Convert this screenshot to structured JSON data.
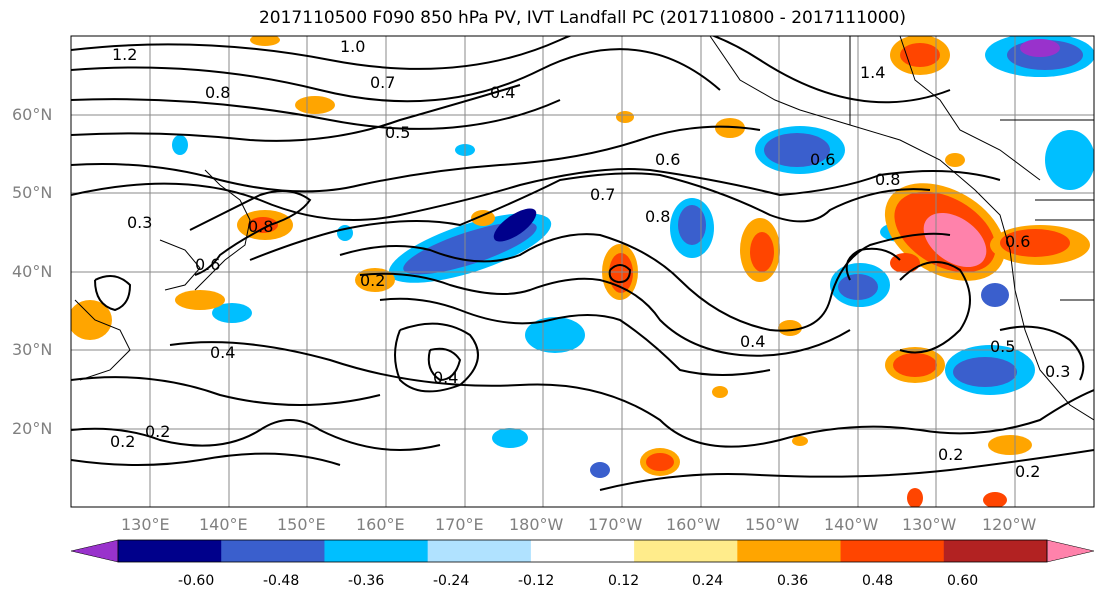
{
  "title": "2017110500 F090 850 hPa PV, IVT Landfall PC (2017110800 - 2017111000)",
  "lat_labels": [
    "60°N",
    "50°N",
    "40°N",
    "30°N",
    "20°N"
  ],
  "lon_labels": [
    "130°E",
    "140°E",
    "150°E",
    "160°E",
    "170°E",
    "180°W",
    "170°W",
    "160°W",
    "150°W",
    "140°W",
    "130°W",
    "120°W"
  ],
  "colorbar": {
    "tick_labels": [
      "-0.60",
      "-0.48",
      "-0.36",
      "-0.24",
      "-0.12",
      "0.12",
      "0.24",
      "0.36",
      "0.48",
      "0.60"
    ],
    "colors": [
      "#9932CC",
      "#00008B",
      "#3A5FCD",
      "#00BFFF",
      "#B0E2FF",
      "#FFFFFF",
      "#FFEC8B",
      "#FFA500",
      "#FF4500",
      "#B22222",
      "#FF82AB"
    ]
  },
  "contour_labels": [
    "1.2",
    "1.0",
    "0.8",
    "0.7",
    "0.6",
    "0.5",
    "0.4",
    "0.3",
    "0.2",
    "1.4"
  ]
}
